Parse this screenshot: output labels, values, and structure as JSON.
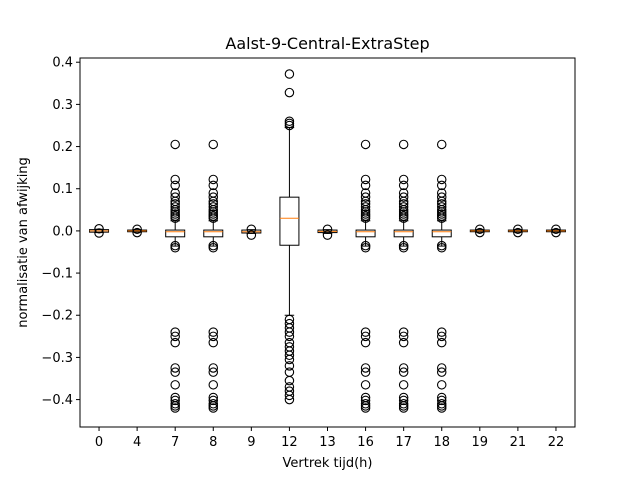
{
  "chart_data": {
    "type": "box",
    "title": "Aalst-9-Central-ExtraStep",
    "xlabel": "Vertrek tijd(h)",
    "ylabel": "normalisatie van afwijking",
    "ylim": [
      -0.465,
      0.41
    ],
    "yticks": [
      "0.4",
      "0.3",
      "0.2",
      "0.1",
      "0.0",
      "−0.1",
      "−0.2",
      "−0.3",
      "−0.4"
    ],
    "ytick_values": [
      0.4,
      0.3,
      0.2,
      0.1,
      0.0,
      -0.1,
      -0.2,
      -0.3,
      -0.4
    ],
    "categories": [
      "0",
      "4",
      "7",
      "8",
      "9",
      "12",
      "13",
      "16",
      "17",
      "18",
      "19",
      "21",
      "22"
    ],
    "colors": {
      "box": "#000000",
      "median": "#ff7f0e",
      "frame": "#000000"
    },
    "boxes": [
      {
        "q1": -0.003,
        "median": 0.0,
        "q3": 0.003,
        "whisker_low": -0.004,
        "whisker_high": 0.004,
        "outliers": [
          -0.005,
          0.005
        ]
      },
      {
        "q1": -0.002,
        "median": 0.0,
        "q3": 0.002,
        "whisker_low": -0.003,
        "whisker_high": 0.003,
        "outliers": [
          -0.004,
          0.004
        ]
      },
      {
        "q1": -0.014,
        "median": -0.002,
        "q3": 0.002,
        "whisker_low": -0.036,
        "whisker_high": 0.024,
        "outliers": [
          0.205,
          0.122,
          0.108,
          0.09,
          0.08,
          0.07,
          0.064,
          0.057,
          0.05,
          0.045,
          0.04,
          0.035,
          0.03,
          -0.04,
          -0.035,
          -0.24,
          -0.25,
          -0.265,
          -0.325,
          -0.335,
          -0.365,
          -0.395,
          -0.402,
          -0.41,
          -0.415,
          -0.42
        ]
      },
      {
        "q1": -0.014,
        "median": -0.002,
        "q3": 0.002,
        "whisker_low": -0.036,
        "whisker_high": 0.024,
        "outliers": [
          0.205,
          0.122,
          0.108,
          0.09,
          0.08,
          0.07,
          0.064,
          0.057,
          0.05,
          0.045,
          0.04,
          0.035,
          0.03,
          -0.04,
          -0.035,
          -0.24,
          -0.25,
          -0.265,
          -0.325,
          -0.335,
          -0.365,
          -0.395,
          -0.402,
          -0.41,
          -0.415,
          -0.42
        ]
      },
      {
        "q1": -0.005,
        "median": -0.002,
        "q3": 0.002,
        "whisker_low": -0.006,
        "whisker_high": 0.003,
        "outliers": [
          -0.01,
          0.004
        ]
      },
      {
        "q1": -0.034,
        "median": 0.03,
        "q3": 0.08,
        "whisker_low": -0.2,
        "whisker_high": 0.245,
        "outliers": [
          0.372,
          0.328,
          0.26,
          0.255,
          0.25,
          -0.21,
          -0.22,
          -0.23,
          -0.24,
          -0.25,
          -0.265,
          -0.275,
          -0.285,
          -0.295,
          -0.305,
          -0.32,
          -0.335,
          -0.355,
          -0.37,
          -0.38,
          -0.39,
          -0.4
        ]
      },
      {
        "q1": -0.004,
        "median": -0.001,
        "q3": 0.002,
        "whisker_low": -0.006,
        "whisker_high": 0.003,
        "outliers": [
          -0.01,
          0.004
        ]
      },
      {
        "q1": -0.014,
        "median": -0.002,
        "q3": 0.002,
        "whisker_low": -0.036,
        "whisker_high": 0.024,
        "outliers": [
          0.205,
          0.122,
          0.108,
          0.09,
          0.08,
          0.07,
          0.064,
          0.057,
          0.05,
          0.045,
          0.04,
          0.035,
          0.03,
          -0.04,
          -0.035,
          -0.24,
          -0.25,
          -0.265,
          -0.325,
          -0.335,
          -0.365,
          -0.395,
          -0.402,
          -0.41,
          -0.415,
          -0.42
        ]
      },
      {
        "q1": -0.014,
        "median": -0.002,
        "q3": 0.002,
        "whisker_low": -0.036,
        "whisker_high": 0.024,
        "outliers": [
          0.205,
          0.122,
          0.108,
          0.09,
          0.08,
          0.07,
          0.064,
          0.057,
          0.05,
          0.045,
          0.04,
          0.035,
          0.03,
          -0.04,
          -0.035,
          -0.24,
          -0.25,
          -0.265,
          -0.325,
          -0.335,
          -0.365,
          -0.395,
          -0.402,
          -0.41,
          -0.415,
          -0.42
        ]
      },
      {
        "q1": -0.014,
        "median": -0.002,
        "q3": 0.002,
        "whisker_low": -0.036,
        "whisker_high": 0.024,
        "outliers": [
          0.205,
          0.122,
          0.108,
          0.09,
          0.08,
          0.07,
          0.064,
          0.057,
          0.05,
          0.045,
          0.04,
          0.035,
          0.03,
          -0.04,
          -0.035,
          -0.24,
          -0.25,
          -0.265,
          -0.325,
          -0.335,
          -0.365,
          -0.395,
          -0.402,
          -0.41,
          -0.415,
          -0.42
        ]
      },
      {
        "q1": -0.002,
        "median": 0.0,
        "q3": 0.002,
        "whisker_low": -0.003,
        "whisker_high": 0.003,
        "outliers": [
          -0.004,
          0.004
        ]
      },
      {
        "q1": -0.002,
        "median": 0.0,
        "q3": 0.002,
        "whisker_low": -0.003,
        "whisker_high": 0.003,
        "outliers": [
          -0.004,
          0.004
        ]
      },
      {
        "q1": -0.002,
        "median": 0.0,
        "q3": 0.002,
        "whisker_low": -0.003,
        "whisker_high": 0.003,
        "outliers": [
          -0.004,
          0.004
        ]
      }
    ],
    "grid": false,
    "legend": "none"
  }
}
